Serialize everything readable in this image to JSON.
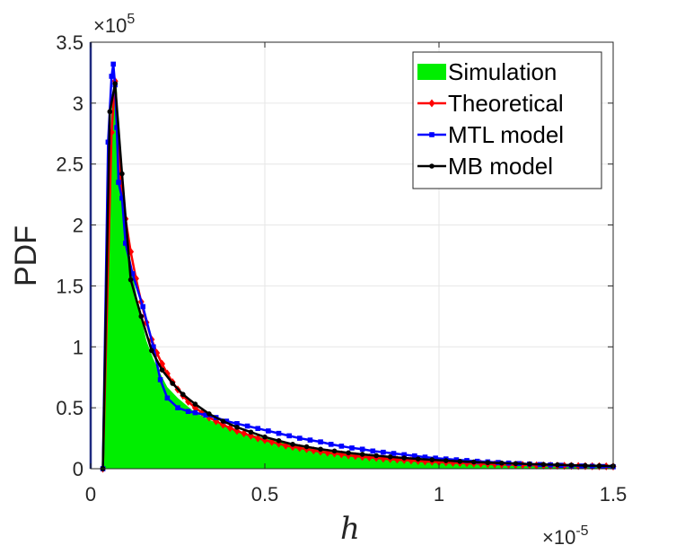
{
  "chart_data": {
    "type": "area",
    "xlabel": "h",
    "ylabel": "PDF",
    "x_multiplier": "×10",
    "x_multiplier_exp": "-5",
    "y_multiplier": "×10",
    "y_multiplier_exp": "5",
    "xlim": [
      0,
      1.5
    ],
    "ylim": [
      0,
      3.5
    ],
    "xticks": [
      0,
      0.5,
      1,
      1.5
    ],
    "yticks": [
      0,
      0.5,
      1,
      1.5,
      2,
      2.5,
      3,
      3.5
    ],
    "grid": true,
    "legend_position": "top-right",
    "series": [
      {
        "name": "Simulation",
        "type": "area",
        "color": "#00ee00",
        "x": [
          0.0,
          0.035,
          0.04,
          0.05,
          0.06,
          0.065,
          0.07,
          0.075,
          0.08,
          0.09,
          0.1,
          0.11,
          0.12,
          0.14,
          0.16,
          0.18,
          0.2,
          0.22,
          0.25,
          0.3,
          0.35,
          0.4,
          0.5,
          0.6,
          0.7,
          0.8,
          0.9,
          1.0,
          1.1,
          1.2,
          1.3,
          1.4,
          1.5
        ],
        "y": [
          0.0,
          0.0,
          0.6,
          2.3,
          2.95,
          3.12,
          3.18,
          3.12,
          2.75,
          2.35,
          2.05,
          1.8,
          1.6,
          1.3,
          1.05,
          0.9,
          0.78,
          0.67,
          0.58,
          0.46,
          0.39,
          0.33,
          0.25,
          0.19,
          0.15,
          0.12,
          0.09,
          0.07,
          0.055,
          0.045,
          0.035,
          0.025,
          0.02
        ]
      },
      {
        "name": "Theoretical",
        "type": "line",
        "color": "#ff0000",
        "marker": "diamond",
        "x": [
          0.035,
          0.06,
          0.07,
          0.085,
          0.1,
          0.115,
          0.13,
          0.145,
          0.16,
          0.175,
          0.19,
          0.205,
          0.22,
          0.235,
          0.25,
          0.265,
          0.28,
          0.3,
          0.32,
          0.34,
          0.36,
          0.38,
          0.4,
          0.42,
          0.44,
          0.46,
          0.48,
          0.5,
          0.52,
          0.54,
          0.56,
          0.58,
          0.6,
          0.62,
          0.64,
          0.66,
          0.68,
          0.7,
          0.72,
          0.74,
          0.76,
          0.78,
          0.8,
          0.82,
          0.84,
          0.86,
          0.88,
          0.9,
          0.92,
          0.94,
          0.96,
          0.98,
          1.0,
          1.02,
          1.04,
          1.06,
          1.08,
          1.1,
          1.12,
          1.14,
          1.16,
          1.18,
          1.2,
          1.22,
          1.24,
          1.26,
          1.28,
          1.3,
          1.32,
          1.34,
          1.36,
          1.38,
          1.4,
          1.42,
          1.44,
          1.46,
          1.48,
          1.5
        ],
        "y": [
          0.0,
          2.76,
          3.18,
          2.38,
          2.05,
          1.78,
          1.56,
          1.37,
          1.2,
          1.06,
          0.95,
          0.86,
          0.78,
          0.71,
          0.65,
          0.6,
          0.55,
          0.5,
          0.46,
          0.42,
          0.39,
          0.36,
          0.335,
          0.31,
          0.29,
          0.27,
          0.25,
          0.235,
          0.22,
          0.205,
          0.19,
          0.18,
          0.17,
          0.16,
          0.15,
          0.14,
          0.132,
          0.125,
          0.118,
          0.11,
          0.104,
          0.098,
          0.093,
          0.088,
          0.083,
          0.079,
          0.075,
          0.071,
          0.067,
          0.064,
          0.06,
          0.057,
          0.054,
          0.052,
          0.049,
          0.047,
          0.045,
          0.043,
          0.041,
          0.039,
          0.037,
          0.035,
          0.034,
          0.032,
          0.031,
          0.03,
          0.028,
          0.027,
          0.026,
          0.025,
          0.024,
          0.023,
          0.022,
          0.021,
          0.02,
          0.02,
          0.019,
          0.018
        ]
      },
      {
        "name": "MTL model",
        "type": "line",
        "color": "#0000ff",
        "marker": "square",
        "x": [
          0.035,
          0.05,
          0.06,
          0.065,
          0.07,
          0.075,
          0.08,
          0.09,
          0.1,
          0.12,
          0.15,
          0.18,
          0.2,
          0.22,
          0.25,
          0.28,
          0.3,
          0.33,
          0.36,
          0.39,
          0.42,
          0.45,
          0.48,
          0.51,
          0.54,
          0.57,
          0.6,
          0.63,
          0.66,
          0.69,
          0.72,
          0.75,
          0.78,
          0.81,
          0.84,
          0.87,
          0.9,
          0.93,
          0.96,
          0.99,
          1.02,
          1.05,
          1.08,
          1.11,
          1.14,
          1.17,
          1.2,
          1.23,
          1.26,
          1.29,
          1.32,
          1.35,
          1.38,
          1.41,
          1.44,
          1.47,
          1.5
        ],
        "y": [
          0.0,
          2.68,
          3.22,
          3.32,
          3.15,
          2.8,
          2.35,
          2.22,
          1.85,
          1.6,
          1.33,
          1.0,
          0.73,
          0.58,
          0.5,
          0.47,
          0.46,
          0.44,
          0.42,
          0.39,
          0.37,
          0.35,
          0.33,
          0.31,
          0.29,
          0.27,
          0.25,
          0.235,
          0.22,
          0.2,
          0.185,
          0.17,
          0.16,
          0.145,
          0.135,
          0.125,
          0.115,
          0.105,
          0.095,
          0.087,
          0.08,
          0.073,
          0.067,
          0.061,
          0.056,
          0.051,
          0.046,
          0.042,
          0.038,
          0.034,
          0.031,
          0.028,
          0.025,
          0.022,
          0.02,
          0.018,
          0.016
        ]
      },
      {
        "name": "MB model",
        "type": "line",
        "color": "#000000",
        "marker": "dot",
        "x": [
          0.035,
          0.055,
          0.07,
          0.09,
          0.115,
          0.145,
          0.175,
          0.205,
          0.235,
          0.265,
          0.3,
          0.34,
          0.38,
          0.42,
          0.46,
          0.5,
          0.54,
          0.58,
          0.62,
          0.66,
          0.7,
          0.74,
          0.78,
          0.82,
          0.86,
          0.9,
          0.94,
          0.98,
          1.02,
          1.06,
          1.1,
          1.14,
          1.18,
          1.22,
          1.26,
          1.3,
          1.34,
          1.38,
          1.42,
          1.46,
          1.5
        ],
        "y": [
          0.0,
          2.93,
          3.16,
          2.42,
          1.55,
          1.25,
          0.97,
          0.81,
          0.7,
          0.61,
          0.53,
          0.45,
          0.39,
          0.34,
          0.3,
          0.26,
          0.23,
          0.2,
          0.18,
          0.16,
          0.145,
          0.13,
          0.118,
          0.107,
          0.097,
          0.088,
          0.08,
          0.073,
          0.066,
          0.06,
          0.055,
          0.05,
          0.046,
          0.042,
          0.038,
          0.035,
          0.032,
          0.029,
          0.026,
          0.024,
          0.022
        ]
      }
    ]
  }
}
